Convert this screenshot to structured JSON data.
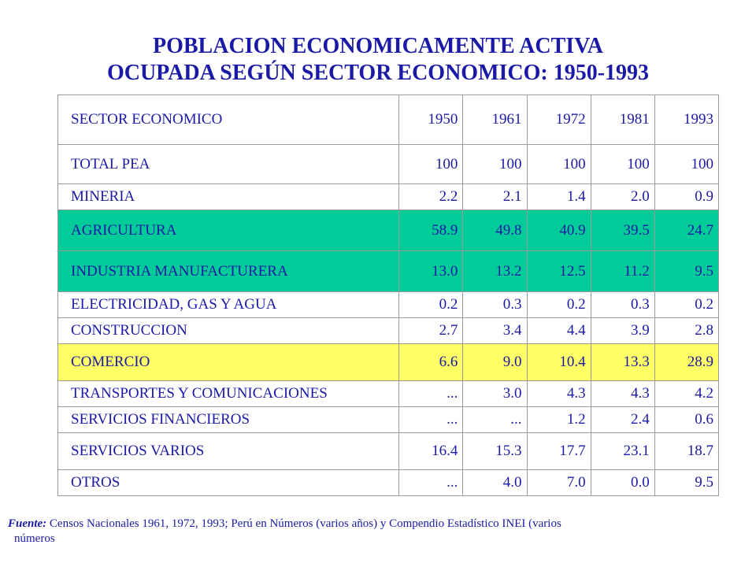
{
  "title": {
    "line1": "POBLACION ECONOMICAMENTE ACTIVA",
    "line2": "OCUPADA SEGÚN SECTOR ECONOMICO: 1950-1993"
  },
  "table": {
    "header": [
      "SECTOR ECONOMICO",
      "1950",
      "1961",
      "1972",
      "1981",
      "1993"
    ],
    "rows": [
      {
        "sector": "TOTAL PEA",
        "values": [
          "100",
          "100",
          "100",
          "100",
          "100"
        ]
      },
      {
        "sector": "MINERIA",
        "values": [
          "2.2",
          "2.1",
          "1.4",
          "2.0",
          "0.9"
        ]
      },
      {
        "sector": "AGRICULTURA",
        "values": [
          "58.9",
          "49.8",
          "40.9",
          "39.5",
          "24.7"
        ],
        "highlight": "#00cc99"
      },
      {
        "sector": "INDUSTRIA MANUFACTURERA",
        "values": [
          "13.0",
          "13.2",
          "12.5",
          "11.2",
          "9.5"
        ],
        "highlight": "#00cc99"
      },
      {
        "sector": "ELECTRICIDAD, GAS Y AGUA",
        "values": [
          "0.2",
          "0.3",
          "0.2",
          "0.3",
          "0.2"
        ]
      },
      {
        "sector": "CONSTRUCCION",
        "values": [
          "2.7",
          "3.4",
          "4.4",
          "3.9",
          "2.8"
        ]
      },
      {
        "sector": "COMERCIO",
        "values": [
          "6.6",
          "9.0",
          "10.4",
          "13.3",
          "28.9"
        ],
        "highlight": "#ffff66"
      },
      {
        "sector": "TRANSPORTES Y COMUNICACIONES",
        "values": [
          "...",
          "3.0",
          "4.3",
          "4.3",
          "4.2"
        ]
      },
      {
        "sector": "SERVICIOS FINANCIEROS",
        "values": [
          "...",
          "...",
          "1.2",
          "2.4",
          "0.6"
        ]
      },
      {
        "sector": "SERVICIOS VARIOS",
        "values": [
          "16.4",
          "15.3",
          "17.7",
          "23.1",
          "18.7"
        ]
      },
      {
        "sector": "OTROS",
        "values": [
          "...",
          "4.0",
          "7.0",
          "0.0",
          "9.5"
        ]
      }
    ]
  },
  "source": {
    "label": "Fuente:",
    "text": "Censos Nacionales 1961, 1972, 1993; Perú en Números (varios años) y Compendio Estadístico INEI (varios",
    "continuation": "números"
  },
  "colors": {
    "text": "#1a1aa6",
    "highlight_green": "#00cc99",
    "highlight_yellow": "#ffff66",
    "border": "#9a9a9a"
  }
}
